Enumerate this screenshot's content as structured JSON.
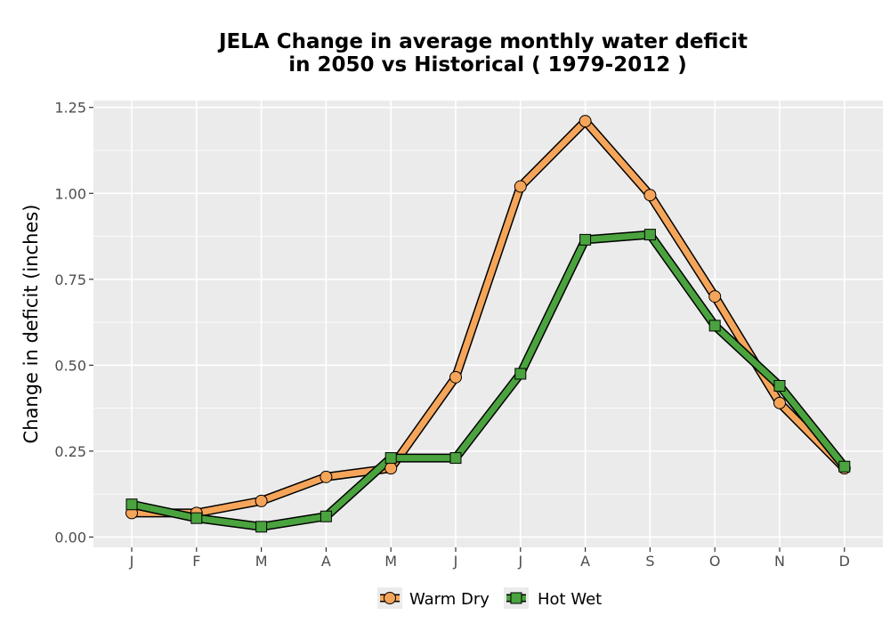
{
  "chart_data": {
    "type": "line",
    "title_line1": "JELA  Change in average monthly water deficit",
    "title_line2": "in 2050 vs Historical ( 1979-2012 )",
    "xlabel": "",
    "ylabel": "Change in deficit (inches)",
    "categories": [
      "J",
      "F",
      "M",
      "A",
      "M",
      "J",
      "J",
      "A",
      "S",
      "O",
      "N",
      "D"
    ],
    "yticks": [
      "0.00",
      "0.25",
      "0.50",
      "0.75",
      "1.00",
      "1.25"
    ],
    "ylim": [
      -0.03,
      1.27
    ],
    "grid": true,
    "legend_position": "bottom",
    "series": [
      {
        "name": "Warm Dry",
        "color": "#f5a55a",
        "marker": "circle",
        "values": [
          0.07,
          0.07,
          0.105,
          0.175,
          0.2,
          0.465,
          1.02,
          1.21,
          0.995,
          0.7,
          0.39,
          0.2
        ]
      },
      {
        "name": "Hot Wet",
        "color": "#4aa33e",
        "marker": "square",
        "values": [
          0.095,
          0.055,
          0.03,
          0.06,
          0.23,
          0.23,
          0.475,
          0.865,
          0.88,
          0.615,
          0.44,
          0.205
        ]
      }
    ],
    "panel_background": "#ebebeb",
    "grid_color": "#ffffff"
  }
}
